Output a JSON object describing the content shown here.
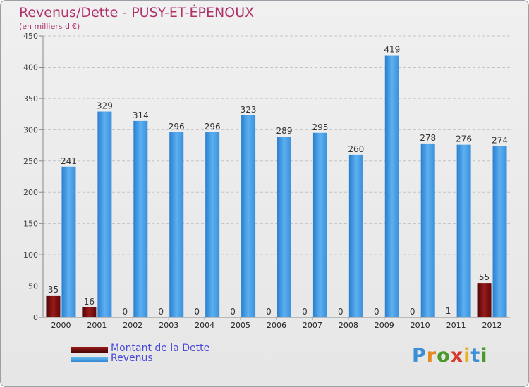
{
  "chart_data": {
    "type": "bar",
    "title": "Revenus/Dette - PUSY-ET-ÉPENOUX",
    "subtitle": "(en milliers d'€)",
    "categories": [
      "2000",
      "2001",
      "2002",
      "2003",
      "2004",
      "2005",
      "2006",
      "2007",
      "2008",
      "2009",
      "2010",
      "2011",
      "2012"
    ],
    "series": [
      {
        "name": "Montant de la Dette",
        "color": "#7a0f0f",
        "values": [
          35,
          16,
          0,
          0,
          0,
          0,
          0,
          0,
          0,
          0,
          0,
          1,
          55
        ]
      },
      {
        "name": "Revenus",
        "color": "#4aa3e8",
        "values": [
          241,
          329,
          314,
          296,
          296,
          323,
          289,
          295,
          260,
          419,
          278,
          276,
          274
        ]
      }
    ],
    "ylim": [
      0,
      450
    ],
    "yticks": [
      0,
      50,
      100,
      150,
      200,
      250,
      300,
      350,
      400,
      450
    ],
    "grid": true,
    "legend": "bottom-left"
  },
  "brand": {
    "logo_letters": [
      "P",
      "r",
      "o",
      "x",
      "i",
      "t",
      "i"
    ],
    "logo_colors": [
      "#3b8fd6",
      "#e8891f",
      "#4a9a2a",
      "#d83a2a",
      "#e8b21f",
      "#3b8fd6",
      "#4a9a2a"
    ]
  }
}
